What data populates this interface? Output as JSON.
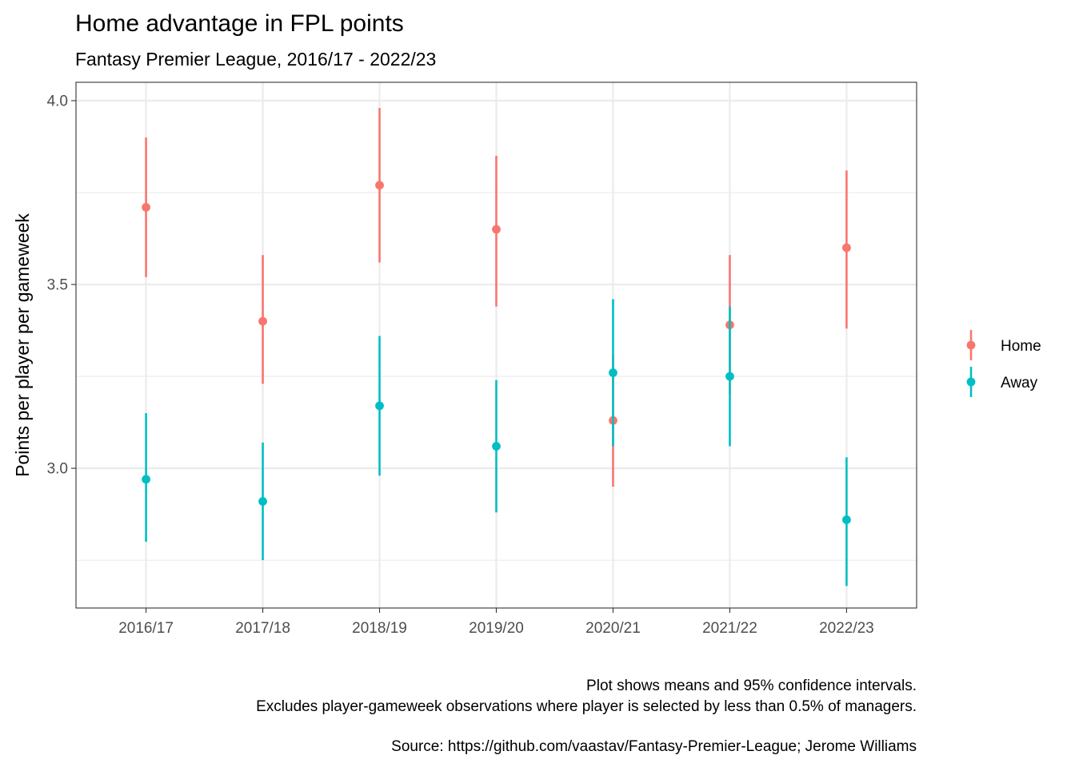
{
  "colors": {
    "home": "#F8766D",
    "away": "#00BFC4",
    "grid": "#EBEBEB",
    "panel_border": "#333333",
    "tick_text": "#4D4D4D"
  },
  "chart_data": {
    "type": "scatter",
    "title": "Home advantage in FPL points",
    "subtitle": "Fantasy Premier League, 2016/17 - 2022/23",
    "xlabel": "",
    "ylabel": "Points per player per gameweek",
    "categories": [
      "2016/17",
      "2017/18",
      "2018/19",
      "2019/20",
      "2020/21",
      "2021/22",
      "2022/23"
    ],
    "ylim": [
      2.62,
      4.05
    ],
    "yticks": [
      3.0,
      3.5,
      4.0
    ],
    "ytick_labels": [
      "3.0",
      "3.5",
      "4.0"
    ],
    "grid": true,
    "legend_position": "right",
    "series": [
      {
        "name": "Home",
        "color": "#F8766D",
        "values": [
          3.71,
          3.4,
          3.77,
          3.65,
          3.13,
          3.39,
          3.6
        ],
        "lower": [
          3.52,
          3.23,
          3.56,
          3.44,
          2.95,
          3.2,
          3.38
        ],
        "upper": [
          3.9,
          3.58,
          3.98,
          3.85,
          3.31,
          3.58,
          3.81
        ]
      },
      {
        "name": "Away",
        "color": "#00BFC4",
        "values": [
          2.97,
          2.91,
          3.17,
          3.06,
          3.26,
          3.25,
          2.86
        ],
        "lower": [
          2.8,
          2.75,
          2.98,
          2.88,
          3.06,
          3.06,
          2.68
        ],
        "upper": [
          3.15,
          3.07,
          3.36,
          3.24,
          3.46,
          3.44,
          3.03
        ]
      }
    ],
    "caption_lines": [
      "Plot shows means and 95% confidence intervals.",
      "Excludes player-gameweek observations where player is selected by less than 0.5% of managers.",
      "Source: https://github.com/vaastav/Fantasy-Premier-League; Jerome Williams"
    ]
  }
}
